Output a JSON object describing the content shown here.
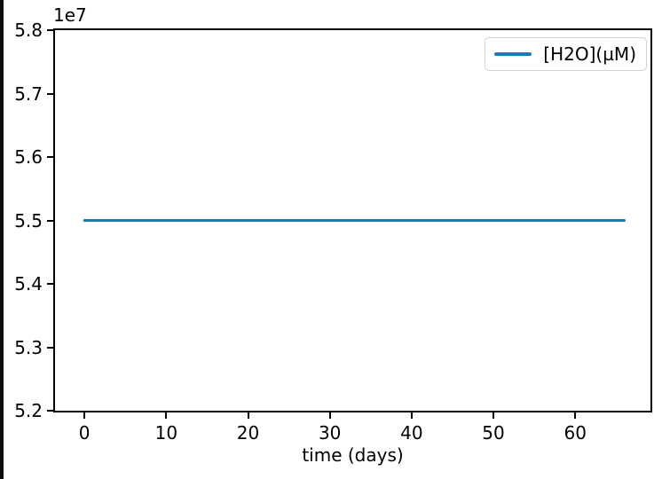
{
  "window": {
    "background_color": "#ffffff",
    "edge_bar_color": "#0d0d0d"
  },
  "chart_data": {
    "type": "line",
    "title": "",
    "xlabel": "time (days)",
    "ylabel": "",
    "offset_text": "1e7",
    "xlim": [
      -3.6,
      69.2
    ],
    "ylim": [
      52000000,
      58000000
    ],
    "xticks": [
      0,
      10,
      20,
      30,
      40,
      50,
      60
    ],
    "xtick_labels": [
      "0",
      "10",
      "20",
      "30",
      "40",
      "50",
      "60"
    ],
    "yticks": [
      52000000,
      53000000,
      54000000,
      55000000,
      56000000,
      57000000,
      58000000
    ],
    "ytick_labels": [
      "5.2",
      "5.3",
      "5.4",
      "5.5",
      "5.6",
      "5.7",
      "5.8"
    ],
    "grid": false,
    "legend_position": "upper right",
    "series": [
      {
        "name": "[H2O](µM)",
        "color": "#1f77b4",
        "line_width": 3,
        "x": [
          0,
          66
        ],
        "y": [
          55000000,
          55000000
        ]
      }
    ]
  },
  "legend": {
    "entries": [
      {
        "label": "[H2O](µM)",
        "color": "#1f77b4"
      }
    ]
  }
}
